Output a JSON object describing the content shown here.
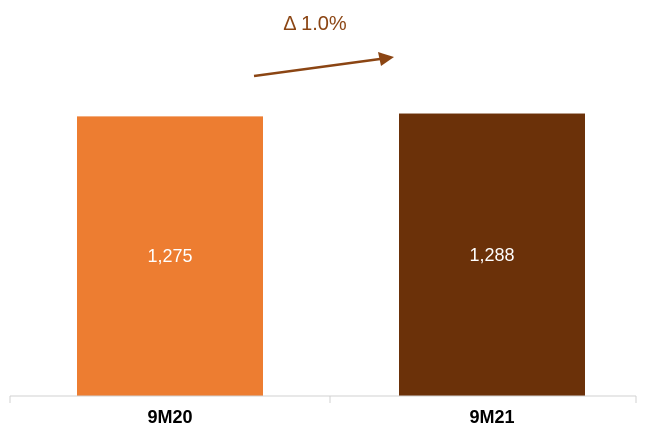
{
  "chart_data": {
    "type": "bar",
    "categories": [
      "9M20",
      "9M21"
    ],
    "values": [
      1275,
      1288
    ],
    "value_labels": [
      "1,275",
      "1,288"
    ],
    "bar_colors": [
      "#ED7D31",
      "#6B3109"
    ],
    "ylim": [
      0,
      1450
    ],
    "grid": false,
    "legend": "none",
    "annotation": {
      "text": "Δ 1.0%",
      "color": "#8B4513"
    },
    "title": "",
    "xlabel": "",
    "ylabel": ""
  }
}
